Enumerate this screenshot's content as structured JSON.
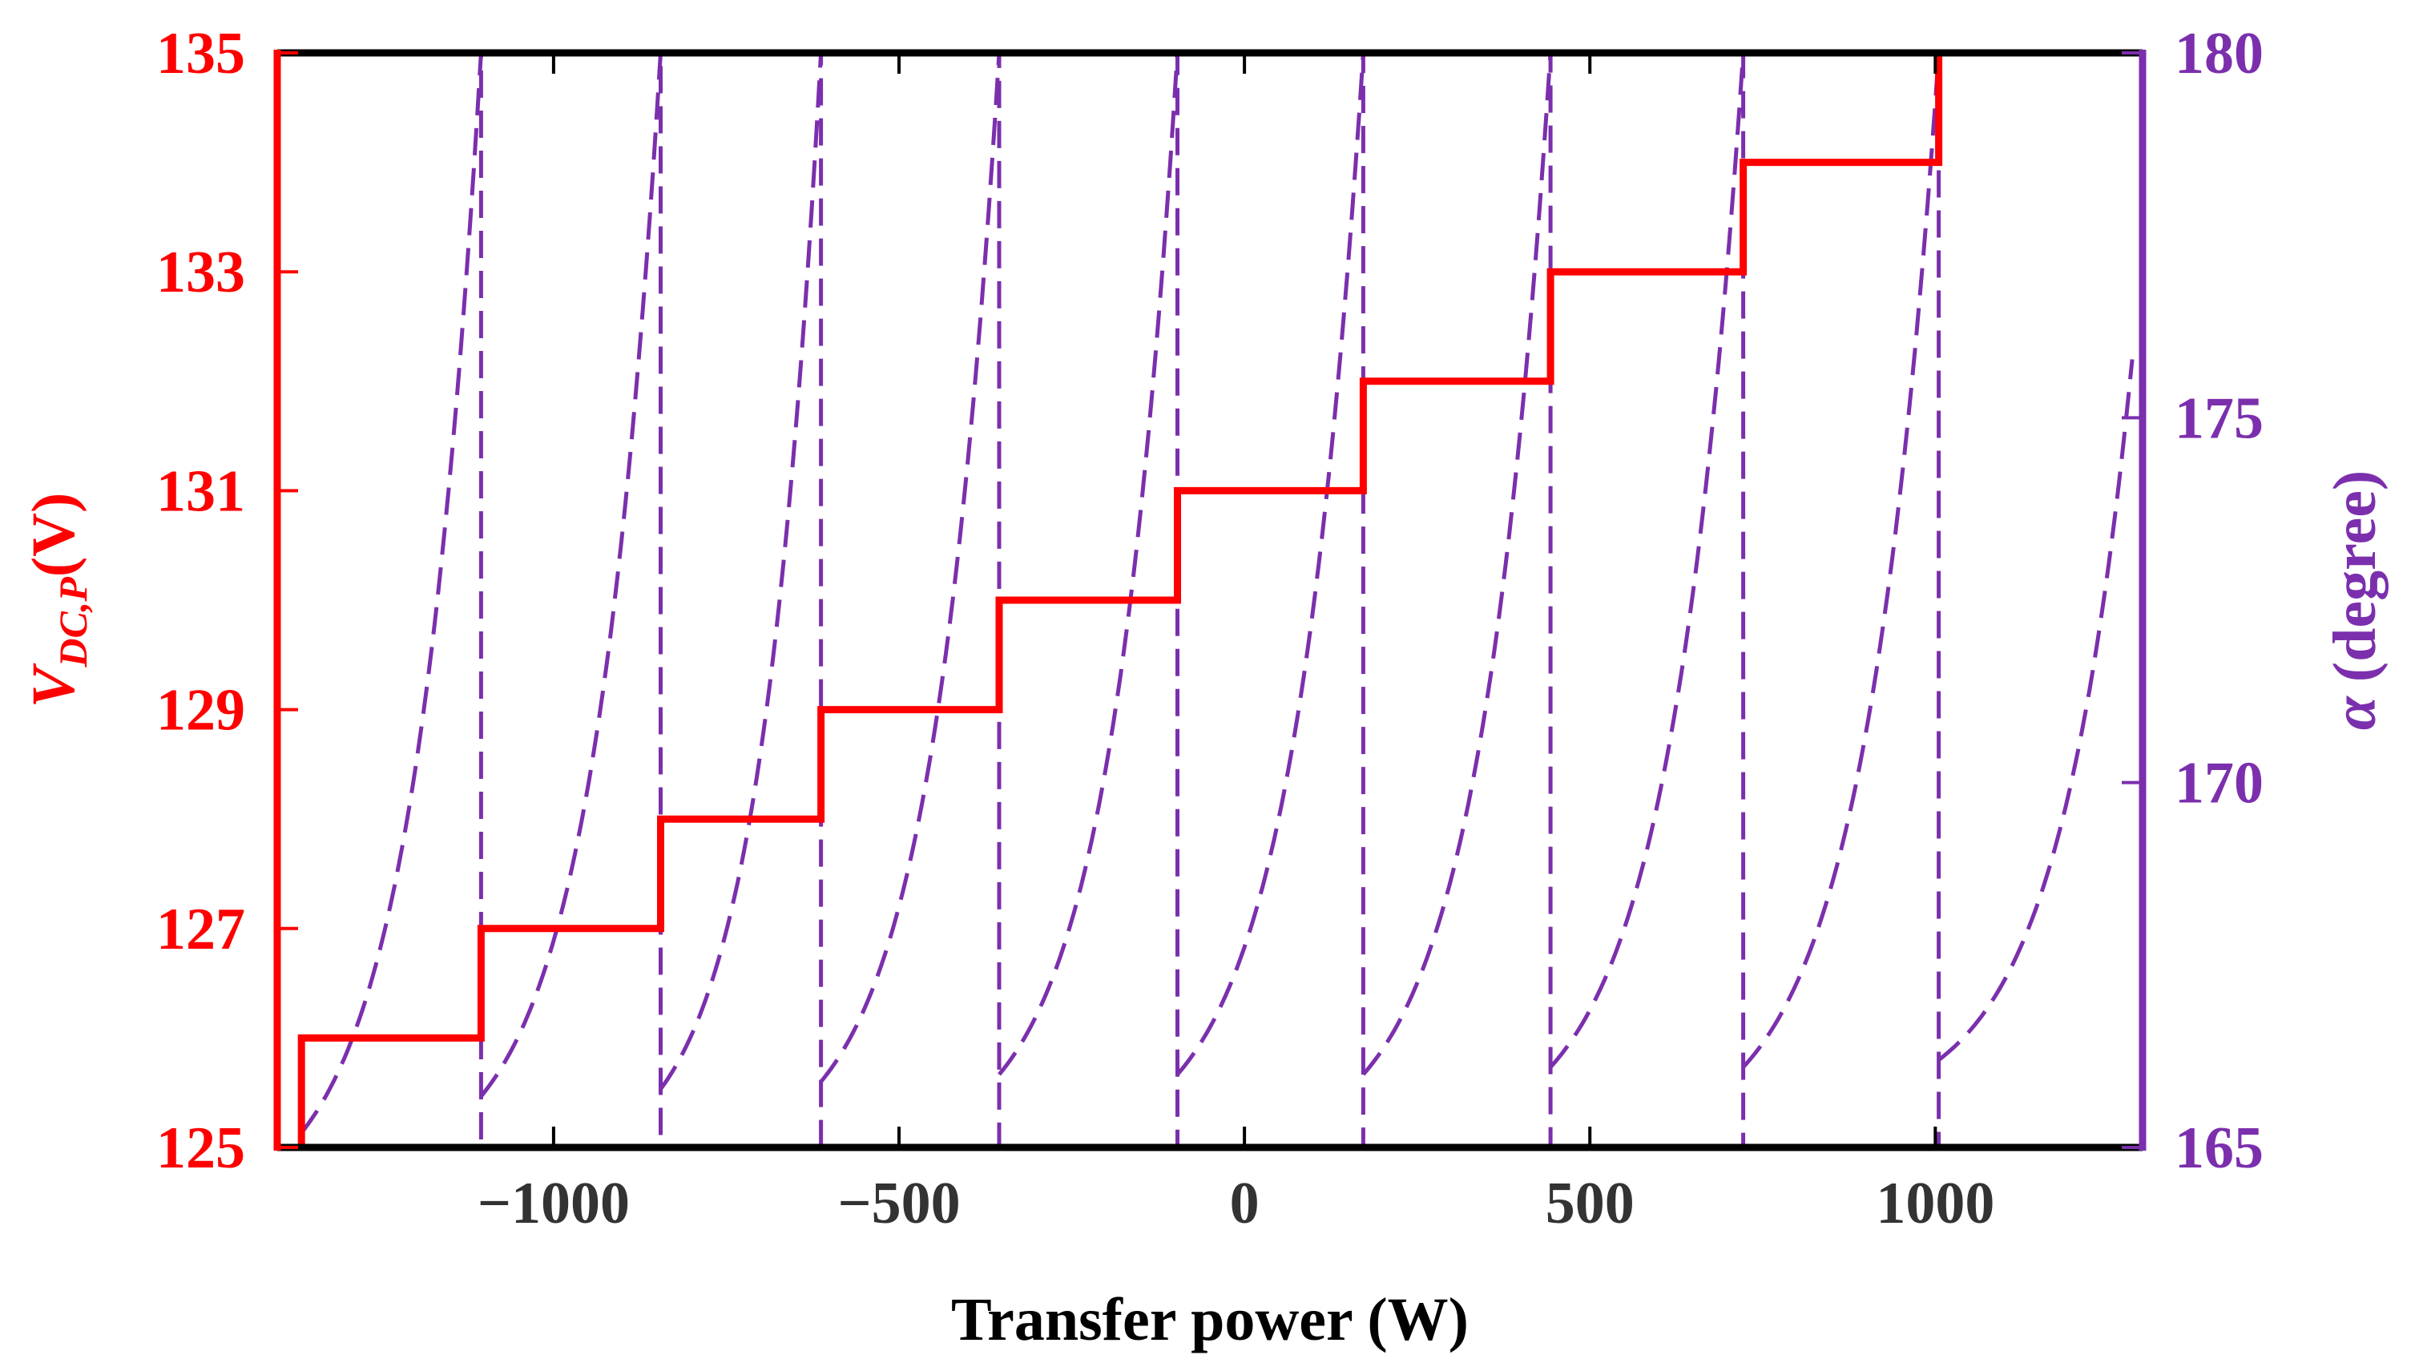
{
  "chart_data": {
    "type": "line",
    "xlabel": "Transfer power (W)",
    "xlim": [
      -1400,
      1300
    ],
    "x_ticks": [
      -1000,
      -500,
      0,
      500,
      1000
    ],
    "x_tick_labels": [
      "−1000",
      "−500",
      "0",
      "500",
      "1000"
    ],
    "ylabel_left": {
      "main": "V",
      "sub": "DC,P",
      "unit": "(V)"
    },
    "ylim_left": [
      125,
      135
    ],
    "y_ticks_left": [
      125,
      127,
      129,
      131,
      133,
      135
    ],
    "y_tick_labels_left": [
      "125",
      "127",
      "129",
      "131",
      "133",
      "135"
    ],
    "ylabel_right": {
      "symbol": "α",
      "unit": "(degree)"
    },
    "ylim_right": [
      165,
      180
    ],
    "y_ticks_right": [
      165,
      170,
      175,
      180
    ],
    "y_tick_labels_right": [
      "165",
      "170",
      "175",
      "180"
    ],
    "colors": {
      "left": "#ff0000",
      "right": "#7b2fad",
      "frame": "#000000",
      "x_ticks": "#333333"
    },
    "series": [
      {
        "name": "V_DC,P",
        "axis": "left",
        "style": "solid",
        "color": "#ff0000",
        "x": [
          -1400,
          -1400,
          -1365,
          -1365,
          -1365,
          -1105,
          -1105,
          -845,
          -845,
          -613,
          -613,
          -355,
          -355,
          -97,
          -97,
          172,
          172,
          443,
          443,
          722,
          722,
          1005,
          1005,
          1285
        ],
        "y": [
          135,
          125,
          125,
          125,
          126,
          126,
          127,
          127,
          128,
          128,
          129,
          129,
          130,
          130,
          131,
          131,
          132,
          132,
          133,
          133,
          134,
          134,
          135,
          135
        ]
      },
      {
        "name": "alpha",
        "axis": "right",
        "style": "dashed",
        "color": "#7b2fad",
        "segments": [
          {
            "x_start": -1365,
            "x_end": -1105,
            "alpha_start": 165.2,
            "alpha_end": 180
          },
          {
            "x_start": -1105,
            "x_end": -845,
            "alpha_start": 165.7,
            "alpha_end": 180
          },
          {
            "x_start": -845,
            "x_end": -613,
            "alpha_start": 165.8,
            "alpha_end": 180
          },
          {
            "x_start": -613,
            "x_end": -355,
            "alpha_start": 165.9,
            "alpha_end": 180
          },
          {
            "x_start": -355,
            "x_end": -97,
            "alpha_start": 166.0,
            "alpha_end": 180
          },
          {
            "x_start": -97,
            "x_end": 172,
            "alpha_start": 166.0,
            "alpha_end": 180
          },
          {
            "x_start": 172,
            "x_end": 443,
            "alpha_start": 166.0,
            "alpha_end": 180
          },
          {
            "x_start": 443,
            "x_end": 722,
            "alpha_start": 166.1,
            "alpha_end": 180
          },
          {
            "x_start": 722,
            "x_end": 1005,
            "alpha_start": 166.1,
            "alpha_end": 180
          },
          {
            "x_start": 1005,
            "x_end": 1285,
            "alpha_start": 166.2,
            "alpha_end": 175.8
          }
        ]
      }
    ]
  }
}
